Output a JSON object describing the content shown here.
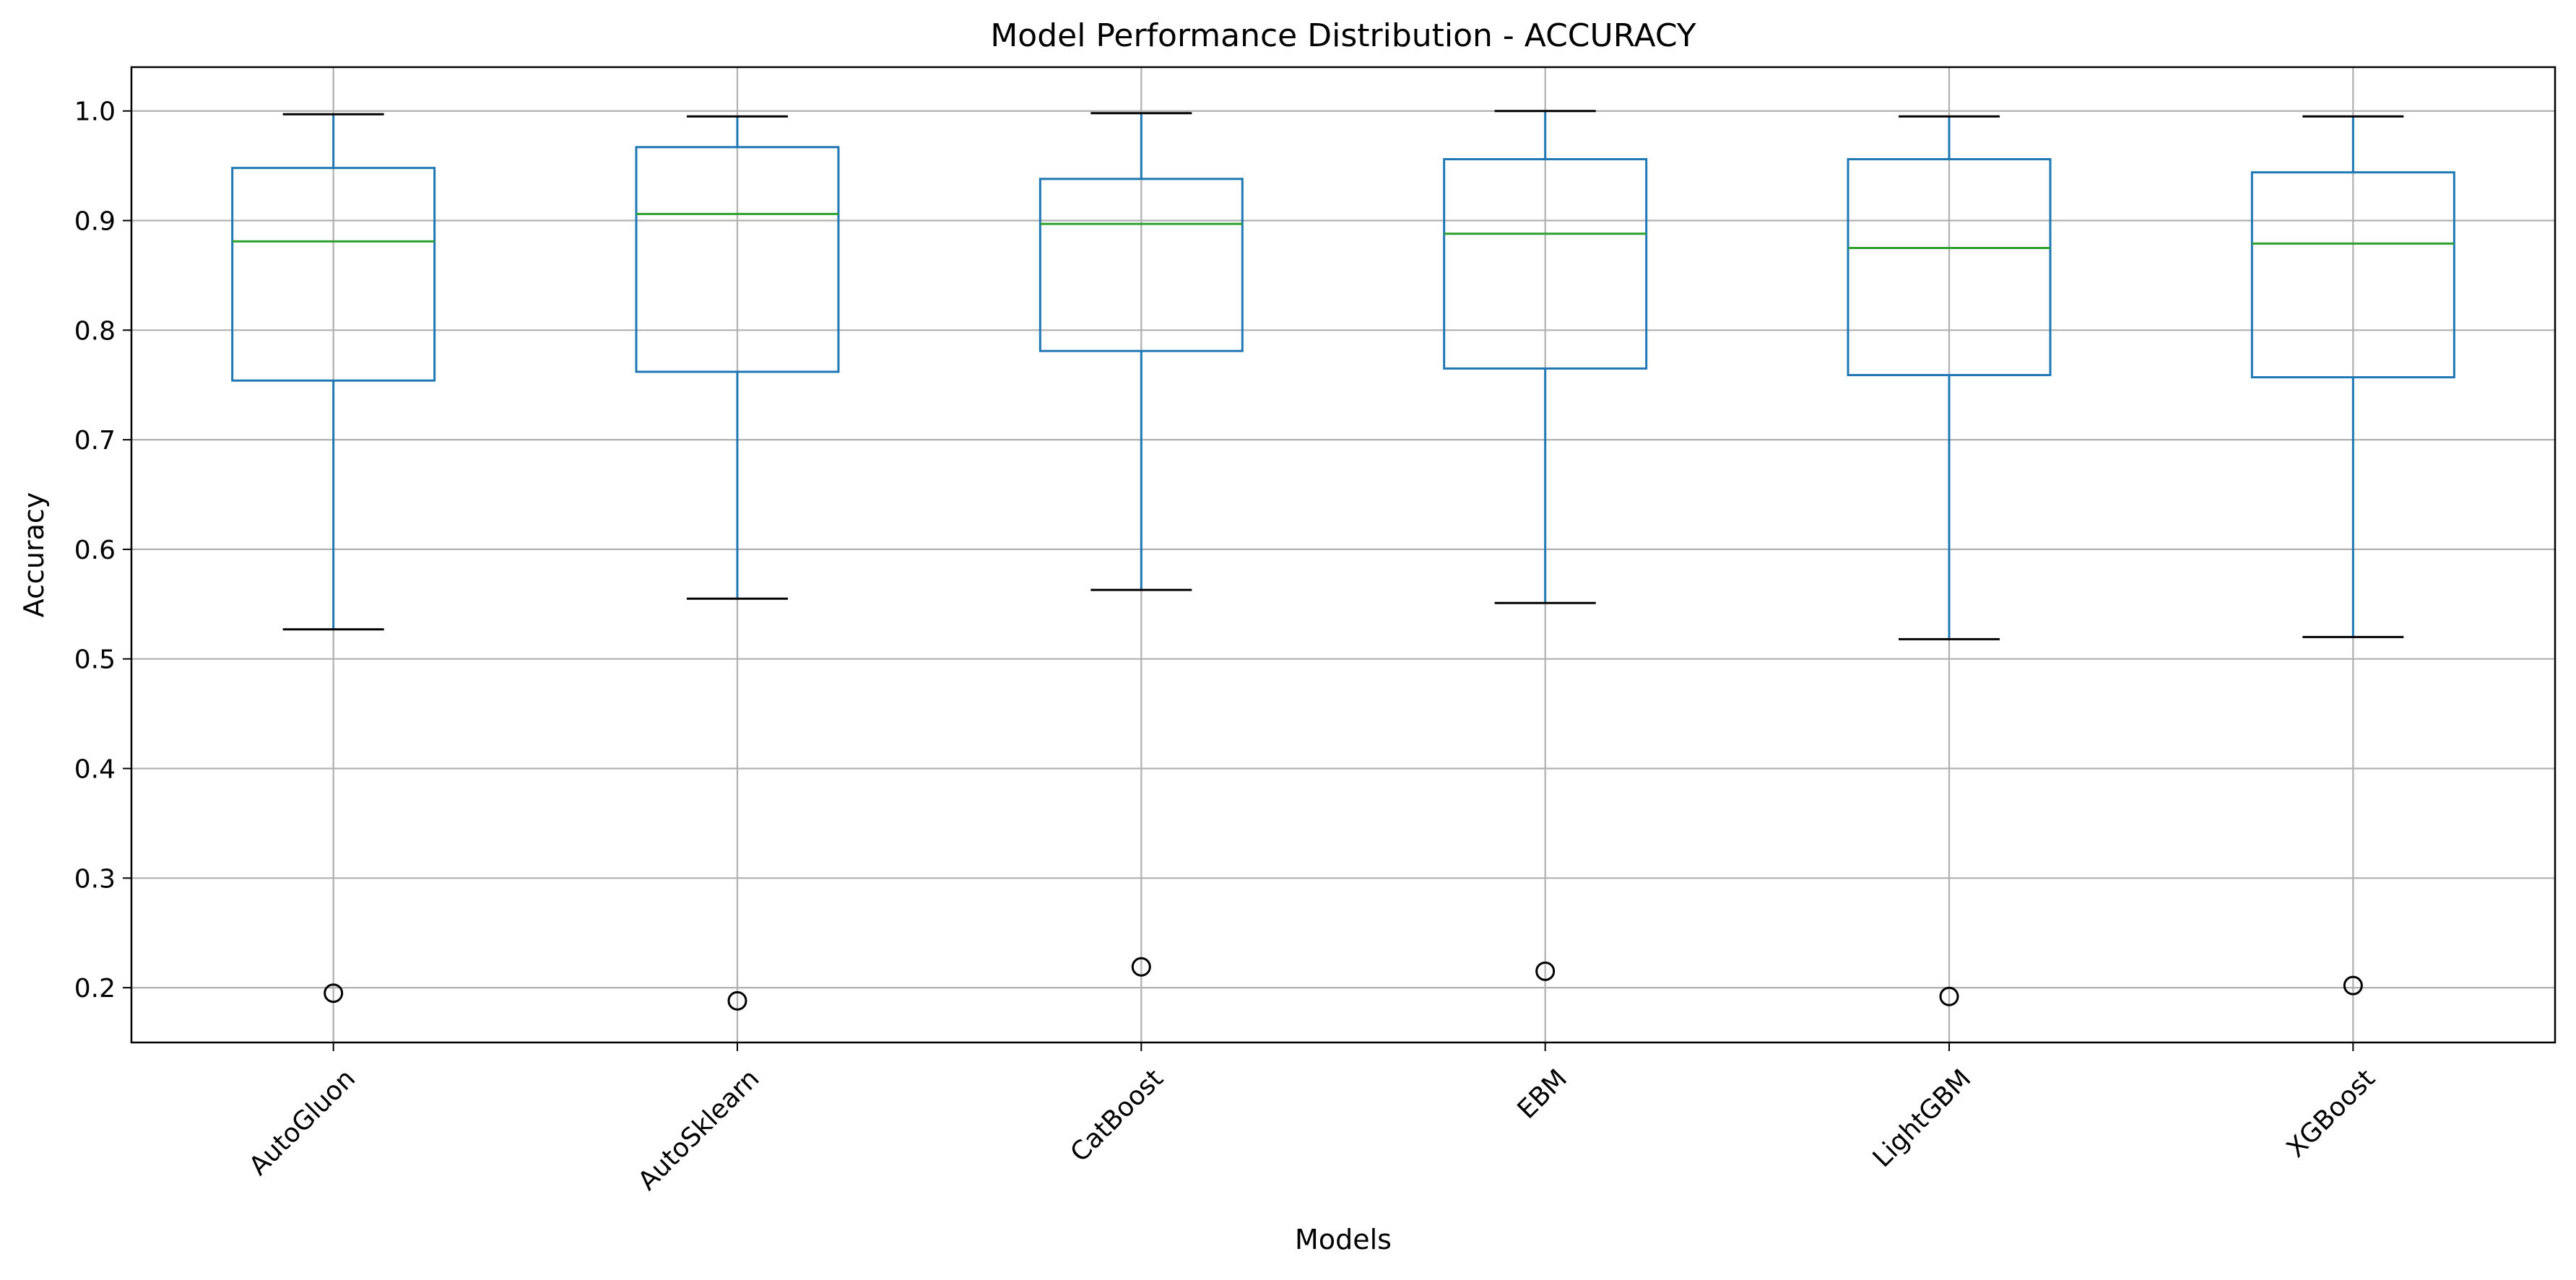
{
  "chart_data": {
    "type": "box",
    "title": "Model Performance Distribution - ACCURACY",
    "xlabel": "Models",
    "ylabel": "Accuracy",
    "ylim": [
      0.15,
      1.04
    ],
    "yticks": [
      0.2,
      0.3,
      0.4,
      0.5,
      0.6,
      0.7,
      0.8,
      0.9,
      1.0
    ],
    "ytick_labels": [
      "0.2",
      "0.3",
      "0.4",
      "0.5",
      "0.6",
      "0.7",
      "0.8",
      "0.9",
      "1.0"
    ],
    "grid": true,
    "categories": [
      "AutoGluon",
      "AutoSklearn",
      "CatBoost",
      "EBM",
      "LightGBM",
      "XGBoost"
    ],
    "boxes": [
      {
        "name": "AutoGluon",
        "whisker_low": 0.527,
        "q1": 0.754,
        "median": 0.881,
        "q3": 0.948,
        "whisker_high": 0.997,
        "outliers": [
          0.195
        ]
      },
      {
        "name": "AutoSklearn",
        "whisker_low": 0.555,
        "q1": 0.762,
        "median": 0.906,
        "q3": 0.967,
        "whisker_high": 0.995,
        "outliers": [
          0.188
        ]
      },
      {
        "name": "CatBoost",
        "whisker_low": 0.563,
        "q1": 0.781,
        "median": 0.897,
        "q3": 0.938,
        "whisker_high": 0.998,
        "outliers": [
          0.219
        ]
      },
      {
        "name": "EBM",
        "whisker_low": 0.551,
        "q1": 0.765,
        "median": 0.888,
        "q3": 0.956,
        "whisker_high": 1.0,
        "outliers": [
          0.215
        ]
      },
      {
        "name": "LightGBM",
        "whisker_low": 0.518,
        "q1": 0.759,
        "median": 0.875,
        "q3": 0.956,
        "whisker_high": 0.995,
        "outliers": [
          0.192
        ]
      },
      {
        "name": "XGBoost",
        "whisker_low": 0.52,
        "q1": 0.757,
        "median": 0.879,
        "q3": 0.944,
        "whisker_high": 0.995,
        "outliers": [
          0.202
        ]
      }
    ],
    "colors": {
      "box": "#1f77b4",
      "median": "#2ca02c",
      "cap": "#000000",
      "flier": "#000000",
      "grid": "#b0b0b0",
      "spine": "#000000"
    }
  }
}
